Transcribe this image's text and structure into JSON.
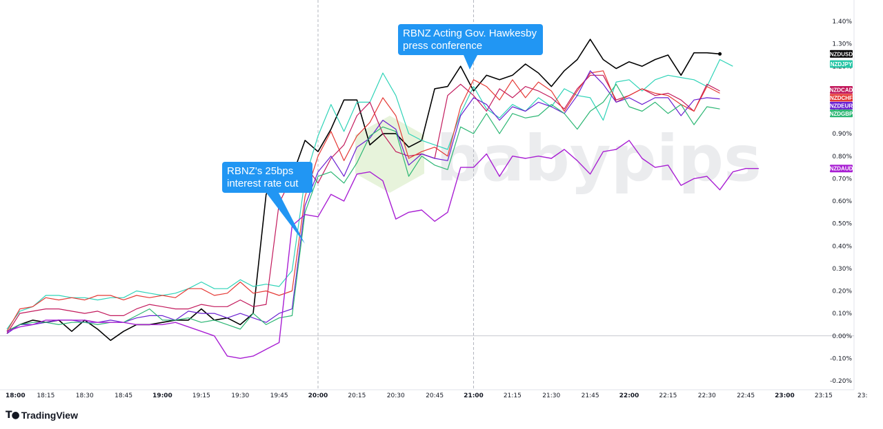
{
  "brand": {
    "logo_text": "TradingView",
    "watermark": "babypips"
  },
  "annotations": [
    {
      "name": "rate-cut",
      "lines": [
        "RBNZ's 25bps",
        "interest rate cut"
      ],
      "x": "19:55",
      "color": "#2196f3"
    },
    {
      "name": "press-conference",
      "lines": [
        "RBNZ Acting Gov. Hawkesby",
        "press conference"
      ],
      "x": "21:00",
      "color": "#2196f3"
    }
  ],
  "chart_data": {
    "type": "line",
    "title": "",
    "xlabel": "",
    "ylabel": "",
    "x_ticks": [
      "18:00",
      "18:15",
      "18:30",
      "18:45",
      "19:00",
      "19:15",
      "19:30",
      "19:45",
      "20:00",
      "20:15",
      "20:30",
      "20:45",
      "21:00",
      "21:15",
      "21:30",
      "21:45",
      "22:00",
      "22:15",
      "22:30",
      "22:45",
      "23:00",
      "23:15",
      "23:"
    ],
    "x_major_ticks": [
      "18:00",
      "19:00",
      "20:00",
      "21:00",
      "22:00",
      "23:00"
    ],
    "x_range_minutes": [
      0,
      315
    ],
    "sample_interval_minutes": 5,
    "y_ticks": [
      "1.40%",
      "1.30%",
      "1.20%",
      "1.10%",
      "1.00%",
      "0.90%",
      "0.80%",
      "0.70%",
      "0.60%",
      "0.50%",
      "0.40%",
      "0.30%",
      "0.20%",
      "0.10%",
      "0.00%",
      "-0.10%",
      "-0.20%"
    ],
    "ylim": [
      -0.225,
      1.45
    ],
    "zero_line": true,
    "vertical_markers": [
      "20:00",
      "21:00"
    ],
    "series": [
      {
        "name": "NZDUSD",
        "color": "#000000",
        "width": 1.6,
        "end_dot": true,
        "values": [
          0.02,
          0.05,
          0.07,
          0.06,
          0.07,
          0.02,
          0.07,
          0.03,
          -0.02,
          0.02,
          0.05,
          0.05,
          0.06,
          0.07,
          0.07,
          0.12,
          0.07,
          0.08,
          0.05,
          0.1,
          0.63,
          0.74,
          0.71,
          0.87,
          0.82,
          0.92,
          1.05,
          1.05,
          0.85,
          0.9,
          0.9,
          0.84,
          0.87,
          1.1,
          1.11,
          1.2,
          1.09,
          1.16,
          1.14,
          1.16,
          1.21,
          1.17,
          1.11,
          1.18,
          1.23,
          1.32,
          1.23,
          1.19,
          1.22,
          1.2,
          1.23,
          1.25,
          1.16,
          1.26,
          1.26,
          1.255
        ]
      },
      {
        "name": "NZDJPY",
        "color": "#2ed3b7",
        "width": 1.2,
        "end_dot": false,
        "values": [
          0.03,
          0.11,
          0.13,
          0.18,
          0.18,
          0.17,
          0.17,
          0.16,
          0.17,
          0.17,
          0.2,
          0.19,
          0.18,
          0.19,
          0.21,
          0.24,
          0.21,
          0.21,
          0.25,
          0.22,
          0.23,
          0.22,
          0.29,
          0.7,
          0.89,
          1.03,
          0.91,
          1.04,
          1.04,
          1.17,
          1.07,
          0.9,
          0.87,
          0.85,
          0.83,
          0.99,
          1.11,
          1.01,
          0.97,
          1.03,
          1.0,
          1.06,
          1.02,
          1.1,
          1.07,
          1.06,
          0.96,
          1.13,
          1.14,
          1.09,
          1.14,
          1.16,
          1.15,
          1.14,
          1.11,
          1.23,
          1.2
        ]
      },
      {
        "name": "NZDCAD",
        "color": "#c2185b",
        "width": 1.2,
        "end_dot": false,
        "values": [
          0.01,
          0.1,
          0.11,
          0.12,
          0.12,
          0.11,
          0.1,
          0.11,
          0.09,
          0.09,
          0.12,
          0.14,
          0.13,
          0.12,
          0.12,
          0.14,
          0.13,
          0.13,
          0.16,
          0.13,
          0.14,
          0.59,
          0.71,
          0.76,
          0.68,
          0.79,
          0.85,
          0.98,
          1.04,
          0.9,
          0.82,
          0.8,
          0.81,
          0.79,
          1.07,
          1.12,
          1.07,
          1.0,
          1.1,
          1.06,
          1.11,
          1.09,
          1.06,
          1.01,
          1.1,
          1.16,
          1.16,
          1.05,
          1.07,
          1.1,
          1.07,
          1.08,
          1.05,
          1.0,
          1.12,
          1.09
        ]
      },
      {
        "name": "NZDCHF",
        "color": "#e53935",
        "width": 1.2,
        "end_dot": false,
        "values": [
          0.02,
          0.12,
          0.13,
          0.17,
          0.16,
          0.17,
          0.16,
          0.18,
          0.18,
          0.16,
          0.18,
          0.17,
          0.18,
          0.17,
          0.21,
          0.21,
          0.18,
          0.19,
          0.24,
          0.19,
          0.2,
          0.18,
          0.2,
          0.62,
          0.8,
          0.91,
          0.78,
          0.89,
          0.95,
          1.06,
          0.98,
          0.79,
          0.82,
          0.84,
          0.8,
          1.02,
          1.14,
          1.11,
          1.05,
          1.14,
          1.06,
          1.13,
          1.09,
          1.0,
          1.09,
          1.17,
          1.18,
          1.04,
          1.07,
          1.1,
          1.08,
          1.07,
          1.03,
          1.0,
          1.11,
          1.08
        ]
      },
      {
        "name": "NZDEUR",
        "color": "#6a1fd1",
        "width": 1.2,
        "end_dot": false,
        "values": [
          0.01,
          0.05,
          0.05,
          0.06,
          0.07,
          0.07,
          0.06,
          0.06,
          0.07,
          0.06,
          0.08,
          0.09,
          0.09,
          0.07,
          0.11,
          0.1,
          0.1,
          0.08,
          0.1,
          0.08,
          0.06,
          0.1,
          0.12,
          0.58,
          0.73,
          0.8,
          0.71,
          0.84,
          0.88,
          0.96,
          0.92,
          0.76,
          0.81,
          0.79,
          0.78,
          0.98,
          1.06,
          1.03,
          0.96,
          1.02,
          1.0,
          1.04,
          1.02,
          0.99,
          1.07,
          1.18,
          1.12,
          1.04,
          1.06,
          1.03,
          1.06,
          1.06,
          0.98,
          1.05,
          1.06,
          1.055
        ]
      },
      {
        "name": "NZDGBP",
        "color": "#2bb673",
        "width": 1.2,
        "end_dot": false,
        "values": [
          0.02,
          0.05,
          0.06,
          0.06,
          0.05,
          0.06,
          0.06,
          0.05,
          0.06,
          0.06,
          0.09,
          0.12,
          0.07,
          0.07,
          0.08,
          0.06,
          0.07,
          0.05,
          0.03,
          0.1,
          0.05,
          0.08,
          0.09,
          0.55,
          0.71,
          0.73,
          0.68,
          0.77,
          0.89,
          0.93,
          0.91,
          0.71,
          0.8,
          0.76,
          0.74,
          0.93,
          0.9,
          0.99,
          0.9,
          0.99,
          0.97,
          0.98,
          1.03,
          0.99,
          0.92,
          1.0,
          1.04,
          1.12,
          1.02,
          1.0,
          1.04,
          0.99,
          1.03,
          0.94,
          1.02,
          1.01
        ]
      },
      {
        "name": "NZDAUD",
        "color": "#a81ed3",
        "width": 1.4,
        "end_dot": false,
        "values": [
          0.02,
          0.04,
          0.05,
          0.07,
          0.07,
          0.07,
          0.07,
          0.06,
          0.06,
          0.06,
          0.05,
          0.05,
          0.05,
          0.06,
          0.04,
          0.02,
          0.0,
          -0.09,
          -0.1,
          -0.09,
          -0.06,
          -0.03,
          0.49,
          0.54,
          0.53,
          0.63,
          0.6,
          0.72,
          0.73,
          0.69,
          0.52,
          0.55,
          0.56,
          0.51,
          0.55,
          0.75,
          0.75,
          0.81,
          0.71,
          0.8,
          0.79,
          0.8,
          0.79,
          0.83,
          0.78,
          0.72,
          0.82,
          0.83,
          0.87,
          0.79,
          0.75,
          0.76,
          0.67,
          0.7,
          0.71,
          0.65,
          0.73,
          0.745,
          0.745
        ]
      }
    ],
    "legend": [
      {
        "label": "NZDUSD",
        "color": "#000000",
        "anchor": 1.255
      },
      {
        "label": "NZDJPY",
        "color": "#26c6a6",
        "anchor": 1.21
      },
      {
        "label": "NZDCAD",
        "color": "#c2185b",
        "anchor": 1.095
      },
      {
        "label": "NZDCHF",
        "color": "#e53935",
        "anchor": 1.06
      },
      {
        "label": "NZDEUR",
        "color": "#6a1fd1",
        "anchor": 1.025
      },
      {
        "label": "NZDGBP",
        "color": "#2bb673",
        "anchor": 0.99
      },
      {
        "label": "NZDAUD",
        "color": "#a81ed3",
        "anchor": 0.745
      }
    ],
    "legend_placement": "right"
  }
}
